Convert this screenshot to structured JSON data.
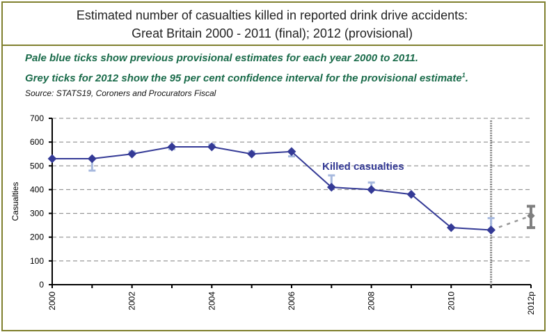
{
  "chart_data": {
    "type": "line",
    "title": "Estimated number of casualties killed in reported drink drive accidents:",
    "subtitle": "Great Britain 2000 - 2011 (final); 2012 (provisional)",
    "notes": [
      "Pale blue ticks show previous provisional estimates for each year 2000 to 2011.",
      "Grey ticks for 2012 show the 95 per cent confidence interval for the provisional estimate"
    ],
    "note_superscript": "1",
    "note_end": ".",
    "source": "Source: STATS19, Coroners and Procurators Fiscal",
    "ylabel": "Casualties",
    "ylim": [
      0,
      700
    ],
    "yticks": [
      0,
      100,
      200,
      300,
      400,
      500,
      600,
      700
    ],
    "x": [
      "2000",
      "2001",
      "2002",
      "2003",
      "2004",
      "2005",
      "2006",
      "2007",
      "2008",
      "2009",
      "2010",
      "2011",
      "2012p"
    ],
    "xtick_labels": [
      "2000",
      "2002",
      "2004",
      "2006",
      "2008",
      "2010",
      "2012p"
    ],
    "series": [
      {
        "name": "Killed casualties",
        "values": [
          530,
          530,
          550,
          580,
          580,
          550,
          560,
          410,
          400,
          380,
          240,
          230,
          null
        ]
      }
    ],
    "provisional_previous": [
      530,
      480,
      560,
      570,
      590,
      560,
      540,
      460,
      430,
      380,
      240,
      280,
      null
    ],
    "provisional_2012": {
      "value": 290,
      "ci": [
        240,
        330
      ]
    },
    "grid": "horizontal dashed",
    "colors": {
      "line": "#343a96",
      "prev": "#a7b9de",
      "ci": "#7f7f7f"
    }
  }
}
